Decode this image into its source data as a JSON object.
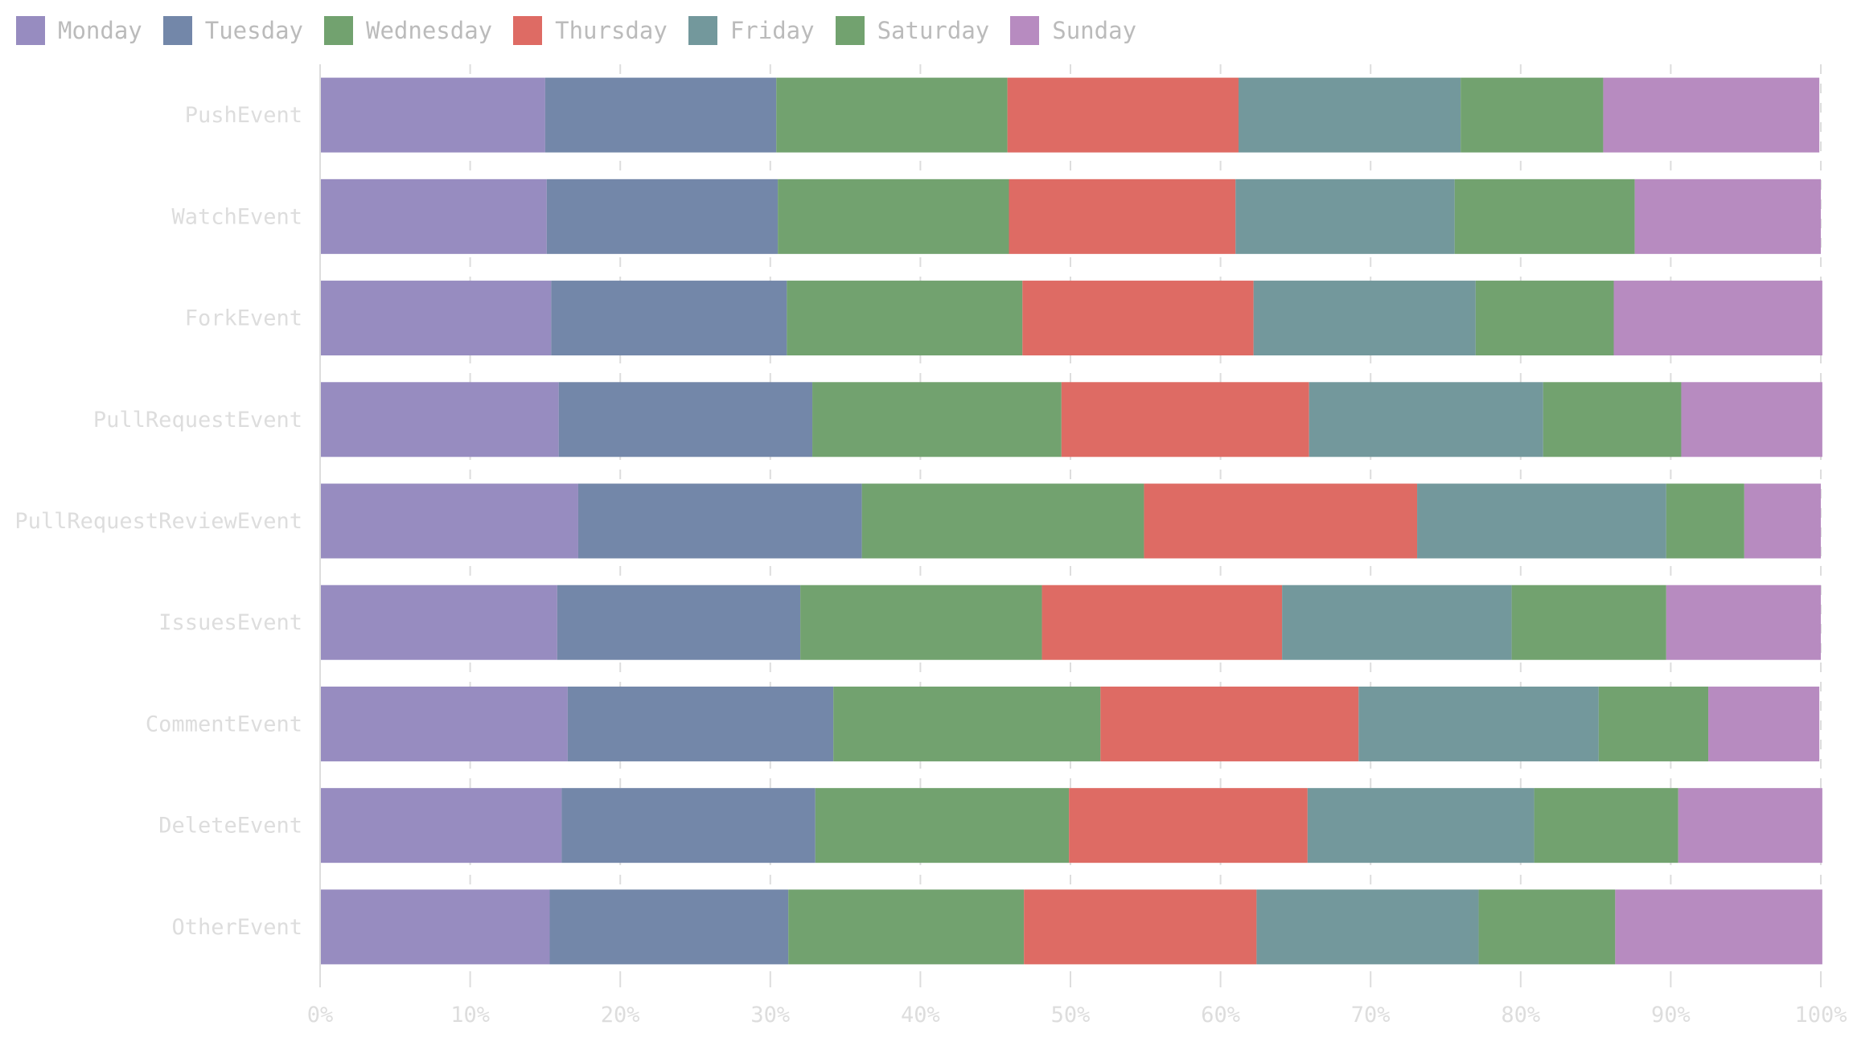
{
  "chart_data": {
    "type": "bar",
    "orientation": "horizontal",
    "stacked": true,
    "normalized": true,
    "categories": [
      "PushEvent",
      "WatchEvent",
      "ForkEvent",
      "PullRequestEvent",
      "PullRequestReviewEvent",
      "IssuesEvent",
      "CommentEvent",
      "DeleteEvent",
      "OtherEvent"
    ],
    "series": [
      {
        "name": "Monday",
        "color": "#978cc0",
        "values": [
          15.0,
          15.1,
          15.4,
          15.9,
          17.2,
          15.8,
          16.5,
          16.1,
          15.3
        ]
      },
      {
        "name": "Tuesday",
        "color": "#7387a9",
        "values": [
          15.4,
          15.4,
          15.7,
          16.9,
          18.9,
          16.2,
          17.7,
          16.9,
          15.9
        ]
      },
      {
        "name": "Wednesday",
        "color": "#72a26f",
        "values": [
          15.4,
          15.4,
          15.7,
          16.6,
          18.8,
          16.1,
          17.8,
          16.9,
          15.7
        ]
      },
      {
        "name": "Thursday",
        "color": "#de6b64",
        "values": [
          15.4,
          15.1,
          15.4,
          16.5,
          18.2,
          16.0,
          17.2,
          15.9,
          15.5
        ]
      },
      {
        "name": "Friday",
        "color": "#73989c",
        "values": [
          14.8,
          14.6,
          14.8,
          15.6,
          16.6,
          15.3,
          16.0,
          15.1,
          14.8
        ]
      },
      {
        "name": "Saturday",
        "color": "#72a26f",
        "values": [
          9.5,
          12.0,
          9.2,
          9.2,
          5.2,
          10.3,
          7.3,
          9.6,
          9.1
        ]
      },
      {
        "name": "Sunday",
        "color": "#b78bc0",
        "values": [
          14.4,
          12.4,
          13.9,
          9.4,
          5.1,
          10.3,
          7.4,
          9.6,
          13.8
        ]
      }
    ],
    "xlim": [
      0,
      100
    ],
    "x_ticks": [
      "0%",
      "10%",
      "20%",
      "30%",
      "40%",
      "50%",
      "60%",
      "70%",
      "80%",
      "90%",
      "100%"
    ],
    "grid": "vertical dashed",
    "legend": "top-left"
  }
}
